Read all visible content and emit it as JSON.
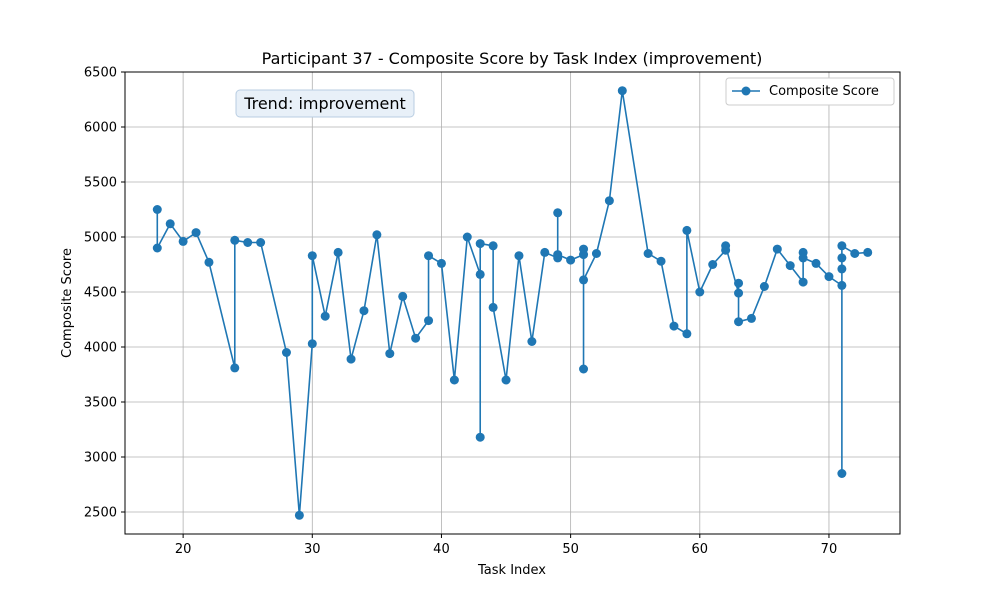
{
  "chart_data": {
    "type": "line",
    "title": "Participant 37 - Composite Score by Task Index (improvement)",
    "xlabel": "Task Index",
    "ylabel": "Composite Score",
    "xlim": [
      15.5,
      75.5
    ],
    "ylim": [
      2300,
      6500
    ],
    "xticks": [
      20,
      30,
      40,
      50,
      60,
      70
    ],
    "yticks": [
      2500,
      3000,
      3500,
      4000,
      4500,
      5000,
      5500,
      6000,
      6500
    ],
    "grid": true,
    "legend": {
      "position": "top-right",
      "entries": [
        "Composite Score"
      ]
    },
    "annotation": "Trend: improvement",
    "series": [
      {
        "name": "Composite Score",
        "color": "#1f77b4",
        "points": [
          [
            18,
            5250
          ],
          [
            18,
            4900
          ],
          [
            19,
            5120
          ],
          [
            20,
            4960
          ],
          [
            21,
            5040
          ],
          [
            22,
            4770
          ],
          [
            24,
            3810
          ],
          [
            24,
            4970
          ],
          [
            25,
            4950
          ],
          [
            26,
            4950
          ],
          [
            28,
            3950
          ],
          [
            29,
            2470
          ],
          [
            30,
            4030
          ],
          [
            30,
            4830
          ],
          [
            31,
            4280
          ],
          [
            32,
            4860
          ],
          [
            33,
            3890
          ],
          [
            34,
            4330
          ],
          [
            35,
            5020
          ],
          [
            36,
            3940
          ],
          [
            37,
            4460
          ],
          [
            38,
            4080
          ],
          [
            39,
            4240
          ],
          [
            39,
            4830
          ],
          [
            40,
            4760
          ],
          [
            41,
            3700
          ],
          [
            42,
            5000
          ],
          [
            43,
            4660
          ],
          [
            43,
            3180
          ],
          [
            43,
            4940
          ],
          [
            44,
            4920
          ],
          [
            44,
            4360
          ],
          [
            45,
            3700
          ],
          [
            46,
            4830
          ],
          [
            47,
            4050
          ],
          [
            48,
            4860
          ],
          [
            49,
            4810
          ],
          [
            49,
            5220
          ],
          [
            49,
            4840
          ],
          [
            50,
            4790
          ],
          [
            51,
            4840
          ],
          [
            51,
            4890
          ],
          [
            51,
            3800
          ],
          [
            51,
            4610
          ],
          [
            52,
            4850
          ],
          [
            53,
            5330
          ],
          [
            54,
            6330
          ],
          [
            56,
            4850
          ],
          [
            57,
            4780
          ],
          [
            58,
            4190
          ],
          [
            59,
            4120
          ],
          [
            59,
            5060
          ],
          [
            60,
            4500
          ],
          [
            61,
            4750
          ],
          [
            62,
            4880
          ],
          [
            62,
            4920
          ],
          [
            63,
            4490
          ],
          [
            63,
            4580
          ],
          [
            63,
            4230
          ],
          [
            64,
            4260
          ],
          [
            65,
            4550
          ],
          [
            66,
            4890
          ],
          [
            67,
            4740
          ],
          [
            68,
            4590
          ],
          [
            68,
            4860
          ],
          [
            68,
            4810
          ],
          [
            69,
            4760
          ],
          [
            70,
            4640
          ],
          [
            71,
            4560
          ],
          [
            71,
            2850
          ],
          [
            71,
            4710
          ],
          [
            71,
            4810
          ],
          [
            71,
            4920
          ],
          [
            72,
            4850
          ],
          [
            73,
            4860
          ]
        ]
      }
    ]
  }
}
